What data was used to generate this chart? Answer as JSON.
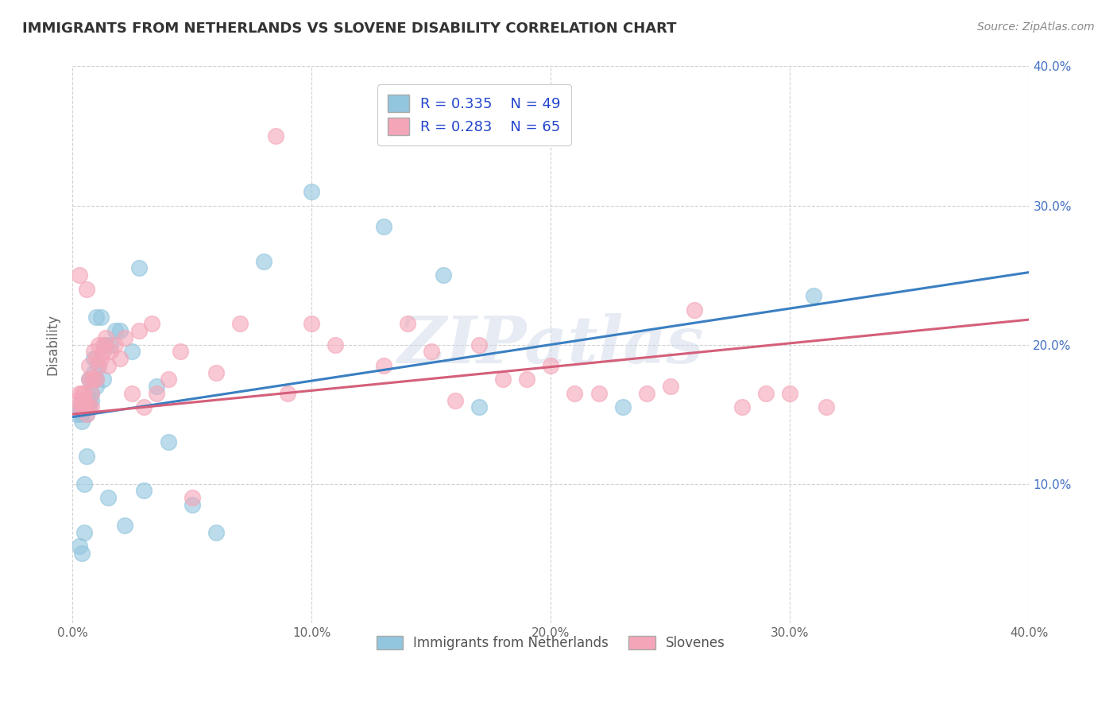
{
  "title": "IMMIGRANTS FROM NETHERLANDS VS SLOVENE DISABILITY CORRELATION CHART",
  "source": "Source: ZipAtlas.com",
  "ylabel": "Disability",
  "xlim": [
    0.0,
    0.4
  ],
  "ylim": [
    0.0,
    0.4
  ],
  "x_tick_labels": [
    "0.0%",
    "10.0%",
    "20.0%",
    "30.0%",
    "40.0%"
  ],
  "x_tick_vals": [
    0.0,
    0.1,
    0.2,
    0.3,
    0.4
  ],
  "y_tick_labels_right": [
    "10.0%",
    "20.0%",
    "30.0%",
    "40.0%"
  ],
  "y_tick_vals": [
    0.1,
    0.2,
    0.3,
    0.4
  ],
  "legend_labels": [
    "Immigrants from Netherlands",
    "Slovenes"
  ],
  "R_netherlands": 0.335,
  "N_netherlands": 49,
  "R_slovenes": 0.283,
  "N_slovenes": 65,
  "color_netherlands": "#92c5de",
  "color_slovenes": "#f4a6b8",
  "trend_color_netherlands": "#3a7fc1",
  "trend_color_slovenes": "#d45f7a",
  "nl_trend_start_y": 0.148,
  "nl_trend_end_y": 0.252,
  "sl_trend_start_y": 0.15,
  "sl_trend_end_y": 0.218,
  "watermark": "ZIPatlas",
  "background_color": "#ffffff",
  "grid_color": "#cccccc",
  "title_color": "#333333",
  "axis_label_color": "#666666",
  "tick_color_right": "#4472c4",
  "nl_x": [
    0.002,
    0.003,
    0.003,
    0.004,
    0.004,
    0.004,
    0.005,
    0.005,
    0.005,
    0.005,
    0.005,
    0.006,
    0.006,
    0.006,
    0.006,
    0.007,
    0.007,
    0.007,
    0.008,
    0.008,
    0.008,
    0.009,
    0.009,
    0.01,
    0.01,
    0.01,
    0.011,
    0.012,
    0.013,
    0.014,
    0.015,
    0.016,
    0.018,
    0.02,
    0.022,
    0.025,
    0.028,
    0.03,
    0.035,
    0.04,
    0.05,
    0.06,
    0.08,
    0.1,
    0.13,
    0.155,
    0.17,
    0.23,
    0.31
  ],
  "nl_y": [
    0.15,
    0.155,
    0.055,
    0.05,
    0.15,
    0.145,
    0.155,
    0.16,
    0.1,
    0.155,
    0.065,
    0.155,
    0.15,
    0.155,
    0.12,
    0.155,
    0.16,
    0.175,
    0.16,
    0.175,
    0.165,
    0.18,
    0.19,
    0.175,
    0.17,
    0.22,
    0.185,
    0.22,
    0.175,
    0.2,
    0.09,
    0.2,
    0.21,
    0.21,
    0.07,
    0.195,
    0.255,
    0.095,
    0.17,
    0.13,
    0.085,
    0.065,
    0.26,
    0.31,
    0.285,
    0.25,
    0.155,
    0.155,
    0.235
  ],
  "sl_x": [
    0.002,
    0.002,
    0.003,
    0.003,
    0.004,
    0.004,
    0.004,
    0.005,
    0.005,
    0.005,
    0.006,
    0.006,
    0.006,
    0.007,
    0.007,
    0.007,
    0.008,
    0.008,
    0.008,
    0.009,
    0.009,
    0.01,
    0.01,
    0.011,
    0.011,
    0.012,
    0.013,
    0.013,
    0.014,
    0.015,
    0.016,
    0.018,
    0.02,
    0.022,
    0.025,
    0.028,
    0.03,
    0.033,
    0.035,
    0.04,
    0.045,
    0.05,
    0.06,
    0.07,
    0.085,
    0.09,
    0.1,
    0.11,
    0.13,
    0.14,
    0.15,
    0.16,
    0.17,
    0.18,
    0.19,
    0.2,
    0.21,
    0.22,
    0.24,
    0.25,
    0.26,
    0.28,
    0.29,
    0.3,
    0.315
  ],
  "sl_y": [
    0.155,
    0.16,
    0.165,
    0.25,
    0.155,
    0.16,
    0.165,
    0.155,
    0.16,
    0.165,
    0.15,
    0.155,
    0.24,
    0.155,
    0.175,
    0.185,
    0.155,
    0.165,
    0.175,
    0.175,
    0.195,
    0.175,
    0.19,
    0.185,
    0.2,
    0.19,
    0.2,
    0.195,
    0.205,
    0.185,
    0.195,
    0.2,
    0.19,
    0.205,
    0.165,
    0.21,
    0.155,
    0.215,
    0.165,
    0.175,
    0.195,
    0.09,
    0.18,
    0.215,
    0.35,
    0.165,
    0.215,
    0.2,
    0.185,
    0.215,
    0.195,
    0.16,
    0.2,
    0.175,
    0.175,
    0.185,
    0.165,
    0.165,
    0.165,
    0.17,
    0.225,
    0.155,
    0.165,
    0.165,
    0.155
  ]
}
